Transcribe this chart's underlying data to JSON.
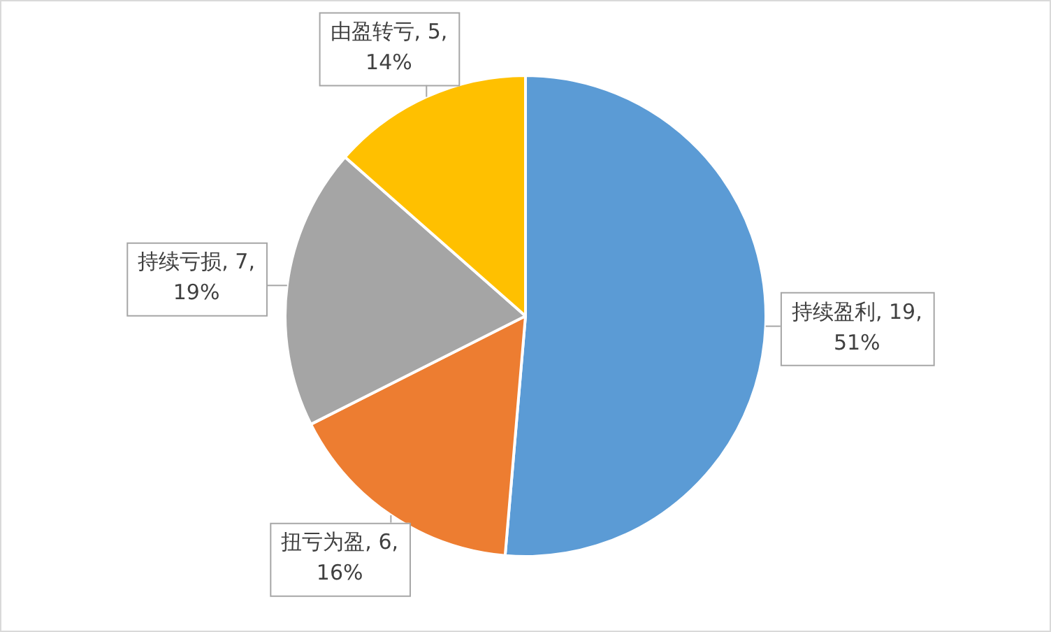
{
  "chart_data": {
    "type": "pie",
    "categories": [
      "持续盈利",
      "扭亏为盈",
      "持续亏损",
      "由盈转亏"
    ],
    "values": [
      19,
      6,
      7,
      5
    ],
    "colors": [
      "#5b9bd5",
      "#ed7d31",
      "#a5a5a5",
      "#ffc000"
    ],
    "value_labels": [
      "19, 51%",
      "6, 16%",
      "7, 19%",
      "5, 14%"
    ],
    "legend": false
  }
}
